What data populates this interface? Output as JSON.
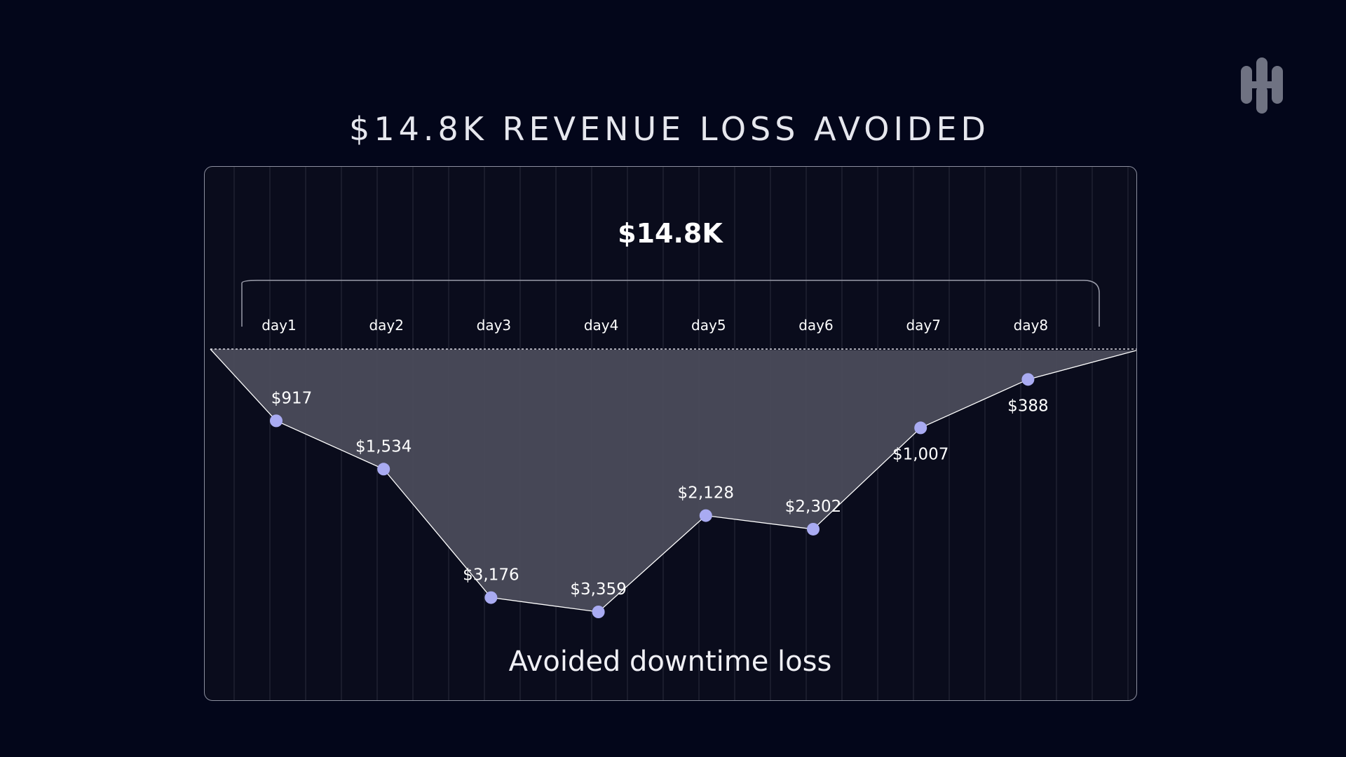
{
  "title": "$14.8K REVENUE LOSS AVOIDED",
  "logo": {
    "icon": "brand-logo-icon",
    "color": "#6f7282"
  },
  "colors": {
    "background": "#03061a",
    "panel": "#0a0c1c",
    "area_fill": "#4a4b5a",
    "point": "#a9abf2",
    "line": "#ffffff"
  },
  "chart_data": {
    "type": "area",
    "title": "$14.8K",
    "subtitle": "Avoided downtime loss",
    "categories": [
      "day1",
      "day2",
      "day3",
      "day4",
      "day5",
      "day6",
      "day7",
      "day8"
    ],
    "values": [
      917,
      1534,
      3176,
      3359,
      2128,
      2302,
      1007,
      388
    ],
    "value_labels": [
      "$917",
      "$1,534",
      "$3,176",
      "$3,359",
      "$2,128",
      "$2,302",
      "$1,007",
      "$388"
    ],
    "ylim": [
      0,
      3359
    ],
    "baseline_label_position": "top",
    "total": "$14.8K",
    "xlabel": "",
    "ylabel": "",
    "grid": true,
    "legend": "none"
  }
}
